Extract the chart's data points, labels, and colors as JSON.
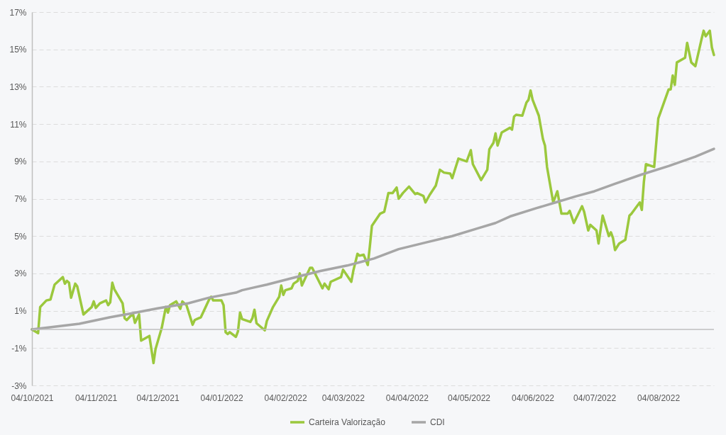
{
  "chart_data": {
    "type": "line",
    "legend": "bottom",
    "grid": "y",
    "line_style": "solid",
    "marker": "none",
    "xlim": [
      "2021-10-04",
      "2022-08-31"
    ],
    "xticks": [
      {
        "value": "2021-10-04",
        "label": "04/10/2021"
      },
      {
        "value": "2021-11-04",
        "label": "04/11/2021"
      },
      {
        "value": "2021-12-04",
        "label": "04/12/2021"
      },
      {
        "value": "2022-01-04",
        "label": "04/01/2022"
      },
      {
        "value": "2022-02-04",
        "label": "04/02/2022"
      },
      {
        "value": "2022-03-04",
        "label": "04/03/2022"
      },
      {
        "value": "2022-04-04",
        "label": "04/04/2022"
      },
      {
        "value": "2022-05-04",
        "label": "04/05/2022"
      },
      {
        "value": "2022-06-04",
        "label": "04/06/2022"
      },
      {
        "value": "2022-07-04",
        "label": "04/07/2022"
      },
      {
        "value": "2022-08-04",
        "label": "04/08/2022"
      }
    ],
    "ylim": [
      -3,
      17
    ],
    "yticks": [
      {
        "value": -3,
        "label": "-3%"
      },
      {
        "value": -1,
        "label": "-1%"
      },
      {
        "value": 1,
        "label": "1%"
      },
      {
        "value": 3,
        "label": "3%"
      },
      {
        "value": 5,
        "label": "5%"
      },
      {
        "value": 7,
        "label": "7%"
      },
      {
        "value": 9,
        "label": "9%"
      },
      {
        "value": 11,
        "label": "11%"
      },
      {
        "value": 13,
        "label": "13%"
      },
      {
        "value": 15,
        "label": "15%"
      },
      {
        "value": 17,
        "label": "17%"
      }
    ],
    "ref_lines": [
      {
        "axis": "y",
        "value": 0,
        "color": "#bfbfbf"
      }
    ],
    "series": [
      {
        "name": "Carteira Valorização",
        "color": "#9bc83d",
        "x": [
          "2021-10-04",
          "2021-10-07",
          "2021-10-08",
          "2021-10-11",
          "2021-10-13",
          "2021-10-15",
          "2021-10-19",
          "2021-10-20",
          "2021-10-21",
          "2021-10-22",
          "2021-10-23",
          "2021-10-25",
          "2021-10-26",
          "2021-10-29",
          "2021-11-02",
          "2021-11-03",
          "2021-11-04",
          "2021-11-06",
          "2021-11-09",
          "2021-11-10",
          "2021-11-11",
          "2021-11-12",
          "2021-11-13",
          "2021-11-17",
          "2021-11-18",
          "2021-11-19",
          "2021-11-22",
          "2021-11-23",
          "2021-11-25",
          "2021-11-26",
          "2021-11-30",
          "2021-12-02",
          "2021-12-03",
          "2021-12-06",
          "2021-12-08",
          "2021-12-09",
          "2021-12-10",
          "2021-12-13",
          "2021-12-15",
          "2021-12-16",
          "2021-12-18",
          "2021-12-21",
          "2021-12-22",
          "2021-12-23",
          "2021-12-25",
          "2021-12-29",
          "2021-12-30",
          "2021-12-31",
          "2022-01-04",
          "2022-01-05",
          "2022-01-06",
          "2022-01-07",
          "2022-01-08",
          "2022-01-11",
          "2022-01-12",
          "2022-01-13",
          "2022-01-14",
          "2022-01-18",
          "2022-01-19",
          "2022-01-20",
          "2022-01-21",
          "2022-01-25",
          "2022-01-26",
          "2022-01-29",
          "2022-02-01",
          "2022-02-02",
          "2022-02-03",
          "2022-02-04",
          "2022-02-07",
          "2022-02-08",
          "2022-02-10",
          "2022-02-11",
          "2022-02-12",
          "2022-02-16",
          "2022-02-17",
          "2022-02-22",
          "2022-02-23",
          "2022-02-25",
          "2022-02-26",
          "2022-03-03",
          "2022-03-04",
          "2022-03-08",
          "2022-03-09",
          "2022-03-11",
          "2022-03-12",
          "2022-03-14",
          "2022-03-16",
          "2022-03-17",
          "2022-03-18",
          "2022-03-22",
          "2022-03-24",
          "2022-03-26",
          "2022-03-28",
          "2022-03-30",
          "2022-03-31",
          "2022-04-02",
          "2022-04-05",
          "2022-04-08",
          "2022-04-09",
          "2022-04-12",
          "2022-04-13",
          "2022-04-15",
          "2022-04-18",
          "2022-04-20",
          "2022-04-22",
          "2022-04-25",
          "2022-04-26",
          "2022-04-29",
          "2022-05-03",
          "2022-05-05",
          "2022-05-06",
          "2022-05-10",
          "2022-05-13",
          "2022-05-14",
          "2022-05-16",
          "2022-05-17",
          "2022-05-18",
          "2022-05-20",
          "2022-05-24",
          "2022-05-25",
          "2022-05-26",
          "2022-05-27",
          "2022-05-30",
          "2022-06-01",
          "2022-06-02",
          "2022-06-03",
          "2022-06-04",
          "2022-06-07",
          "2022-06-09",
          "2022-06-10",
          "2022-06-11",
          "2022-06-14",
          "2022-06-16",
          "2022-06-18",
          "2022-06-21",
          "2022-06-22",
          "2022-06-24",
          "2022-06-28",
          "2022-06-29",
          "2022-07-01",
          "2022-07-02",
          "2022-07-05",
          "2022-07-06",
          "2022-07-08",
          "2022-07-11",
          "2022-07-12",
          "2022-07-13",
          "2022-07-14",
          "2022-07-16",
          "2022-07-19",
          "2022-07-21",
          "2022-07-22",
          "2022-07-26",
          "2022-07-27",
          "2022-07-28",
          "2022-07-29",
          "2022-08-02",
          "2022-08-03",
          "2022-08-04",
          "2022-08-09",
          "2022-08-10",
          "2022-08-11",
          "2022-08-12",
          "2022-08-13",
          "2022-08-17",
          "2022-08-18",
          "2022-08-20",
          "2022-08-22",
          "2022-08-25",
          "2022-08-26",
          "2022-08-27",
          "2022-08-29",
          "2022-08-30",
          "2022-08-31"
        ],
        "values": [
          0.0,
          -0.2,
          1.2,
          1.55,
          1.6,
          2.4,
          2.8,
          2.45,
          2.6,
          2.5,
          1.7,
          2.45,
          2.3,
          0.8,
          1.2,
          1.5,
          1.15,
          1.4,
          1.55,
          1.3,
          1.45,
          2.5,
          2.15,
          1.4,
          0.6,
          0.5,
          0.85,
          0.35,
          0.8,
          -0.6,
          -0.35,
          -1.8,
          -1.05,
          0.08,
          1.2,
          0.9,
          1.3,
          1.5,
          1.1,
          1.5,
          1.3,
          0.25,
          0.5,
          0.55,
          0.65,
          1.6,
          1.75,
          1.55,
          1.55,
          1.3,
          -0.15,
          -0.25,
          -0.15,
          -0.4,
          -0.1,
          0.9,
          0.55,
          0.4,
          0.6,
          1.05,
          0.33,
          -0.05,
          0.45,
          1.2,
          1.75,
          2.35,
          1.85,
          2.1,
          2.2,
          2.45,
          2.6,
          3.0,
          2.35,
          3.3,
          3.3,
          2.2,
          2.45,
          2.15,
          2.55,
          2.8,
          3.2,
          2.55,
          3.15,
          4.05,
          3.95,
          4.0,
          3.45,
          4.45,
          5.55,
          6.2,
          6.3,
          7.3,
          7.3,
          7.6,
          7.0,
          7.3,
          7.65,
          7.25,
          7.3,
          7.15,
          6.8,
          7.2,
          7.7,
          8.55,
          8.4,
          8.35,
          8.1,
          9.15,
          9.0,
          9.6,
          8.85,
          8.0,
          8.55,
          9.65,
          10.0,
          10.5,
          9.85,
          10.55,
          10.8,
          10.7,
          11.4,
          11.5,
          11.45,
          12.15,
          12.3,
          12.8,
          12.3,
          11.45,
          10.2,
          9.85,
          8.7,
          6.8,
          7.4,
          6.2,
          6.2,
          6.35,
          5.7,
          6.6,
          6.3,
          5.3,
          5.6,
          5.3,
          4.6,
          6.1,
          5.0,
          5.2,
          4.9,
          4.25,
          4.6,
          4.8,
          6.1,
          6.2,
          6.8,
          6.4,
          7.9,
          8.85,
          8.7,
          10.0,
          11.3,
          12.85,
          12.85,
          13.6,
          13.1,
          14.3,
          14.55,
          15.35,
          14.3,
          14.1,
          15.55,
          16.0,
          15.7,
          16.0,
          15.1,
          14.7
        ]
      },
      {
        "name": "CDI",
        "color": "#a6a6a6",
        "x": [
          "2021-10-04",
          "2021-10-27",
          "2021-11-11",
          "2021-11-21",
          "2021-12-04",
          "2021-12-19",
          "2021-12-29",
          "2022-01-11",
          "2022-01-14",
          "2022-01-20",
          "2022-01-26",
          "2022-02-08",
          "2022-02-21",
          "2022-03-06",
          "2022-03-19",
          "2022-03-31",
          "2022-04-13",
          "2022-04-26",
          "2022-05-08",
          "2022-05-17",
          "2022-05-24",
          "2022-06-06",
          "2022-06-16",
          "2022-06-25",
          "2022-07-04",
          "2022-07-14",
          "2022-07-27",
          "2022-08-09",
          "2022-08-22",
          "2022-08-31"
        ],
        "values": [
          0.0,
          0.3,
          0.65,
          0.85,
          1.13,
          1.4,
          1.7,
          1.97,
          2.1,
          2.25,
          2.4,
          2.77,
          3.13,
          3.42,
          3.8,
          4.3,
          4.65,
          5.0,
          5.4,
          5.7,
          6.05,
          6.5,
          6.83,
          7.13,
          7.4,
          7.8,
          8.3,
          8.75,
          9.25,
          9.67
        ]
      }
    ]
  }
}
